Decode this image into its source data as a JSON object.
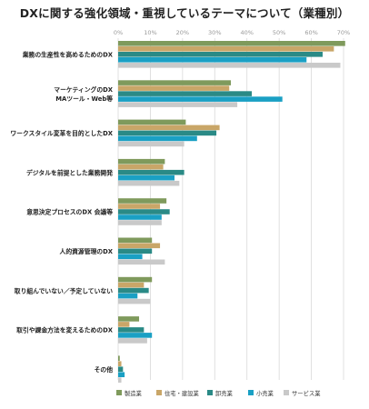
{
  "chart_data": {
    "type": "bar",
    "orientation": "horizontal",
    "title": "DXに関する強化領域・重視しているテーマについて（業種別）",
    "xlabel": "",
    "ylabel": "",
    "xlim": [
      0,
      70
    ],
    "x_ticks": [
      "0%",
      "10%",
      "20%",
      "30%",
      "40%",
      "50%",
      "60%",
      "70%"
    ],
    "grid": true,
    "legend_position": "bottom",
    "categories": [
      [
        "業務の生産性を高めるためのDX"
      ],
      [
        "マーケティングのDX",
        "MAツール・Web等"
      ],
      [
        "ワークスタイル変革を目的としたDX"
      ],
      [
        "デジタルを前提とした業務開発"
      ],
      [
        "意思決定プロセスのDX 会議等"
      ],
      [
        "人的資源管理のDX"
      ],
      [
        "取り組んでいない／予定していない"
      ],
      [
        "取引や課金方法を変えるためのDX"
      ],
      [
        "その他"
      ]
    ],
    "series": [
      {
        "name": "製造業",
        "color": "#7f9a5c",
        "values": [
          70.5,
          35,
          21,
          14.5,
          15,
          10.5,
          10.5,
          6.5,
          0.5
        ]
      },
      {
        "name": "住宅・建設業",
        "color": "#c9a668",
        "values": [
          67,
          34.5,
          31.5,
          14,
          13,
          13,
          8,
          3.5,
          1
        ]
      },
      {
        "name": "卸売業",
        "color": "#2a8a86",
        "values": [
          63.5,
          41.5,
          30.5,
          20.5,
          16,
          10.5,
          9.5,
          8,
          1.5
        ]
      },
      {
        "name": "小売業",
        "color": "#1aa0c4",
        "values": [
          58.5,
          51,
          24.5,
          17.5,
          13.5,
          7.5,
          6,
          10.5,
          2
        ]
      },
      {
        "name": "サービス業",
        "color": "#c9c9c9",
        "values": [
          69,
          37,
          20.5,
          19,
          13.5,
          14.5,
          10,
          9,
          1
        ]
      }
    ]
  }
}
